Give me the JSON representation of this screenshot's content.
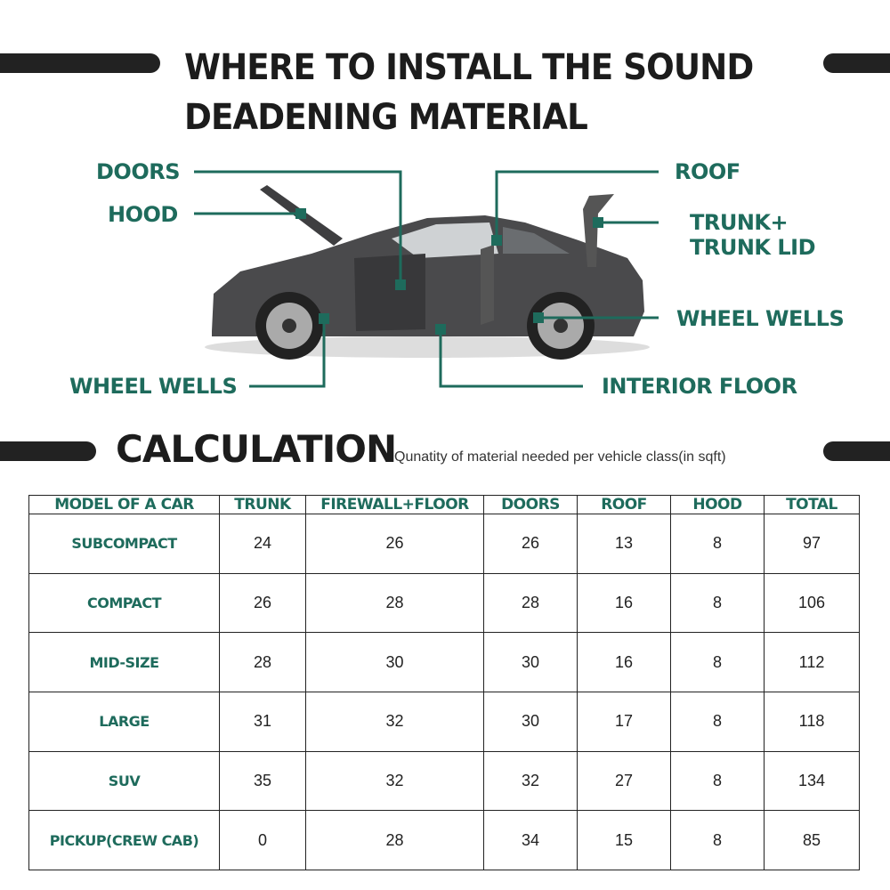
{
  "title_line1": "WHERE TO INSTALL THE SOUND",
  "title_line2": "DEADENING MATERIAL",
  "accent_color": "#1e6b5c",
  "labels": {
    "doors": "DOORS",
    "hood": "HOOD",
    "roof": "ROOF",
    "trunk_line1": "TRUNK+",
    "trunk_line2": "TRUNK LID",
    "wheel_wells_right": "WHEEL WELLS",
    "wheel_wells_left": "WHEEL WELLS",
    "interior_floor": "INTERIOR FLOOR"
  },
  "calculation": {
    "heading": "CALCULATION",
    "subtitle": "Qunatity of material needed per vehicle class(in sqft)"
  },
  "table": {
    "headers": [
      "MODEL OF A CAR",
      "TRUNK",
      "FIREWALL+FLOOR",
      "DOORS",
      "ROOF",
      "HOOD",
      "TOTAL"
    ],
    "rows": [
      [
        "SUBCOMPACT",
        "24",
        "26",
        "26",
        "13",
        "8",
        "97"
      ],
      [
        "COMPACT",
        "26",
        "28",
        "28",
        "16",
        "8",
        "106"
      ],
      [
        "MID-SIZE",
        "28",
        "30",
        "30",
        "16",
        "8",
        "112"
      ],
      [
        "LARGE",
        "31",
        "32",
        "30",
        "17",
        "8",
        "118"
      ],
      [
        "SUV",
        "35",
        "32",
        "32",
        "27",
        "8",
        "134"
      ],
      [
        "PICKUP(CREW CAB)",
        "0",
        "28",
        "34",
        "15",
        "8",
        "85"
      ]
    ]
  }
}
